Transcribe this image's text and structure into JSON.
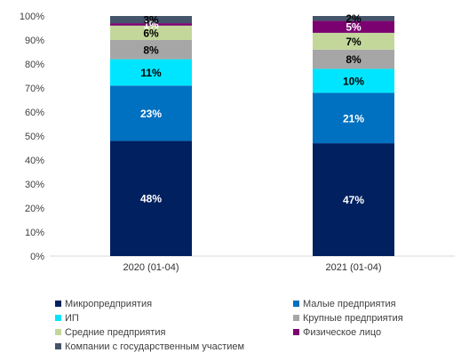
{
  "chart_data": {
    "type": "bar",
    "stacked": "percent",
    "categories": [
      "2020 (01-04)",
      "2021 (01-04)"
    ],
    "ylim": [
      0,
      100
    ],
    "y_ticks": [
      "0%",
      "10%",
      "20%",
      "30%",
      "40%",
      "50%",
      "60%",
      "70%",
      "80%",
      "90%",
      "100%"
    ],
    "grid": false,
    "legend_position": "bottom",
    "series": [
      {
        "name": "Микропредприятия",
        "values": [
          48,
          47
        ],
        "labels": [
          "48%",
          "47%"
        ],
        "color": "#002060",
        "label_color": "#ffffff"
      },
      {
        "name": "Малые предприятия",
        "values": [
          23,
          21
        ],
        "labels": [
          "23%",
          "21%"
        ],
        "color": "#0070c0",
        "label_color": "#ffffff"
      },
      {
        "name": "ИП",
        "values": [
          11,
          10
        ],
        "labels": [
          "11%",
          "10%"
        ],
        "color": "#00e5ff",
        "label_color": "#000000"
      },
      {
        "name": "Крупные предприятия",
        "values": [
          8,
          8
        ],
        "labels": [
          "8%",
          "8%"
        ],
        "color": "#a6a6a6",
        "label_color": "#000000"
      },
      {
        "name": "Средние предприятия",
        "values": [
          6,
          7
        ],
        "labels": [
          "6%",
          "7%"
        ],
        "color": "#c4d79b",
        "label_color": "#000000"
      },
      {
        "name": "Физическое лицо",
        "values": [
          1,
          5
        ],
        "labels": [
          "1%",
          "5%"
        ],
        "color": "#7b0070",
        "label_color": "#ffffff"
      },
      {
        "name": "Компании с государственным участием",
        "values": [
          3,
          2
        ],
        "labels": [
          "3%",
          "2%"
        ],
        "color": "#44546a",
        "label_color": "#000000"
      }
    ]
  }
}
